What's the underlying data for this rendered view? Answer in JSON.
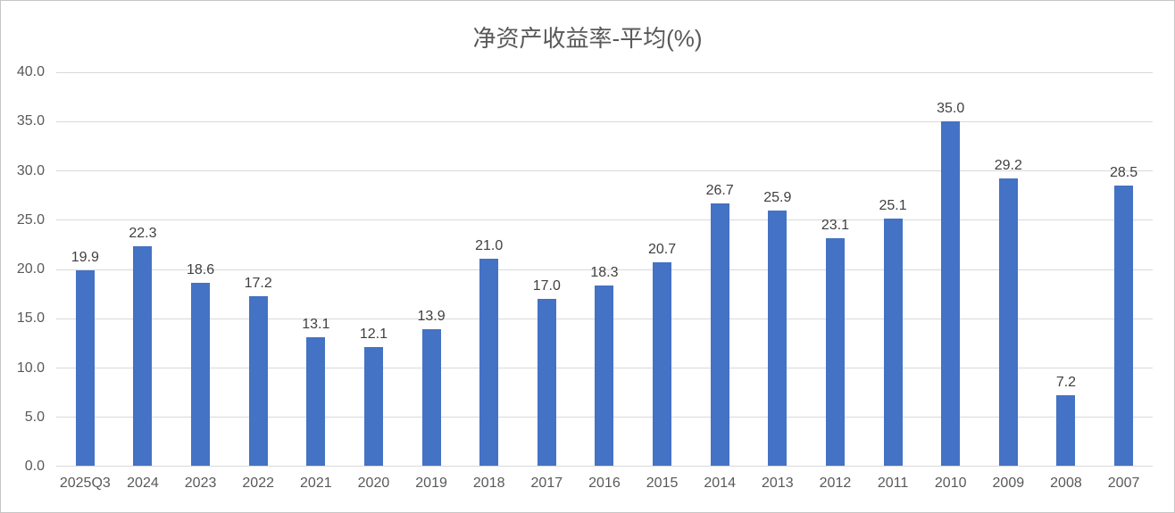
{
  "chart_data": {
    "type": "bar",
    "title": "净资产收益率-平均(%)",
    "categories": [
      "2025Q3",
      "2024",
      "2023",
      "2022",
      "2021",
      "2020",
      "2019",
      "2018",
      "2017",
      "2016",
      "2015",
      "2014",
      "2013",
      "2012",
      "2011",
      "2010",
      "2009",
      "2008",
      "2007"
    ],
    "values": [
      19.9,
      22.3,
      18.6,
      17.2,
      13.1,
      12.1,
      13.9,
      21.0,
      17.0,
      18.3,
      20.7,
      26.7,
      25.9,
      23.1,
      25.1,
      35.0,
      29.2,
      7.2,
      28.5
    ],
    "data_labels": [
      "19.9",
      "22.3",
      "18.6",
      "17.2",
      "13.1",
      "12.1",
      "13.9",
      "21.0",
      "17.0",
      "18.3",
      "20.7",
      "26.7",
      "25.9",
      "23.1",
      "25.1",
      "35.0",
      "29.2",
      "7.2",
      "28.5"
    ],
    "xlabel": "",
    "ylabel": "",
    "ylim": [
      0,
      40
    ],
    "ytick_interval": 5,
    "ytick_labels": [
      "0.0",
      "5.0",
      "10.0",
      "15.0",
      "20.0",
      "25.0",
      "30.0",
      "35.0",
      "40.0"
    ],
    "grid": true,
    "legend": false
  },
  "colors": {
    "bar": "#4472C4",
    "gridline": "#D9D9D9",
    "axis_line": "#D9D9D9",
    "axis_text": "#595959",
    "data_label_text": "#404040",
    "title_text": "#595959",
    "border": "#C6C6C6",
    "background": "#FFFFFF"
  }
}
